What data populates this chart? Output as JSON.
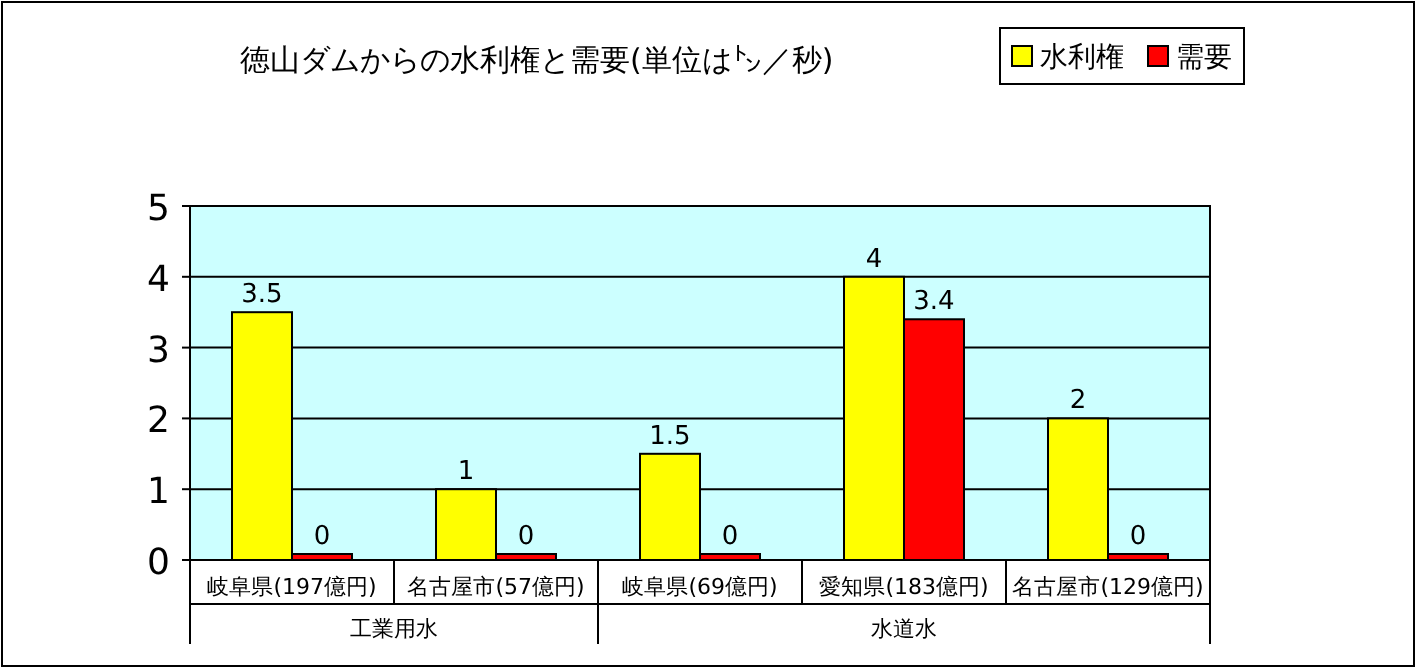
{
  "chart_data": {
    "type": "bar",
    "title": "徳山ダムからの水利権と需要(単位は㌧／秒)",
    "categories": [
      "岐阜県(197億円)",
      "名古屋市(57億円)",
      "岐阜県(69億円)",
      "愛知県(183億円)",
      "名古屋市(129億円)"
    ],
    "series": [
      {
        "name": "水利権",
        "color": "#ffff00",
        "values": [
          3.5,
          1,
          1.5,
          4,
          2
        ]
      },
      {
        "name": "需要",
        "color": "#ff0000",
        "values": [
          0,
          0,
          0,
          3.4,
          0
        ]
      }
    ],
    "annotations": [
      "工業用水",
      "水道水"
    ],
    "ylim": [
      0,
      5
    ],
    "yticks": [
      0,
      1,
      2,
      3,
      4,
      5
    ],
    "grid": "y",
    "legend": "top right",
    "data_labels": true
  }
}
